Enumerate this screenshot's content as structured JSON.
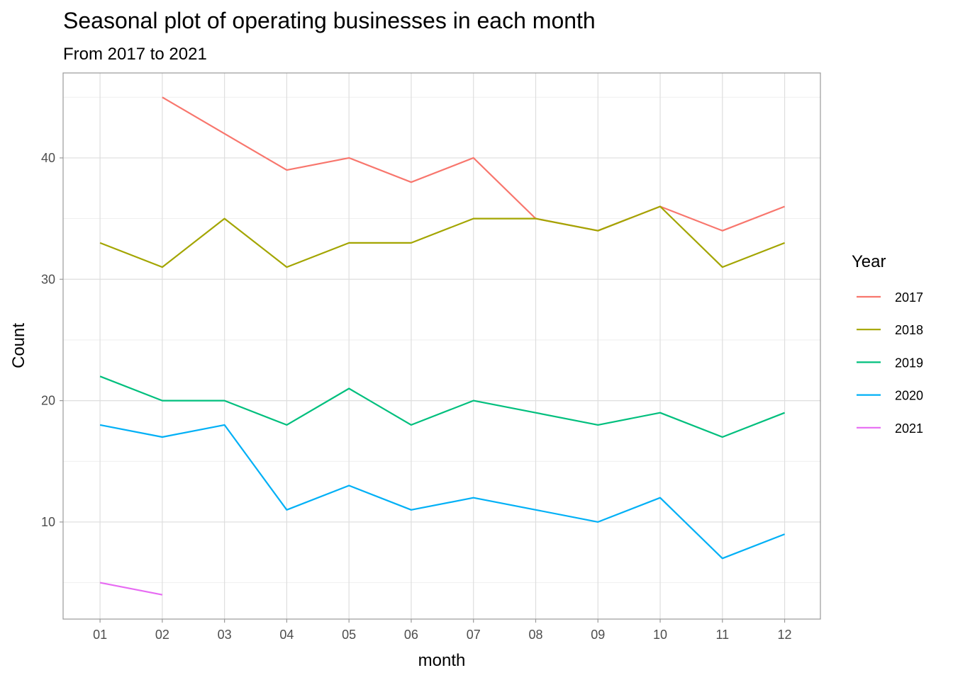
{
  "chart_data": {
    "type": "line",
    "title": "Seasonal plot of operating businesses in each month",
    "subtitle": "From 2017 to 2021",
    "xlabel": "month",
    "ylabel": "Count",
    "categories": [
      "01",
      "02",
      "03",
      "04",
      "05",
      "06",
      "07",
      "08",
      "09",
      "10",
      "11",
      "12"
    ],
    "yticks": [
      10,
      20,
      30,
      40
    ],
    "ylim": [
      2,
      47
    ],
    "grid": true,
    "legend": {
      "title": "Year",
      "position": "right"
    },
    "series": [
      {
        "name": "2017",
        "color": "#F8766D",
        "values": [
          null,
          45,
          42,
          39,
          40,
          38,
          40,
          35,
          34,
          36,
          34,
          36
        ]
      },
      {
        "name": "2018",
        "color": "#A3A500",
        "values": [
          33,
          31,
          35,
          31,
          33,
          33,
          35,
          35,
          34,
          36,
          31,
          33
        ]
      },
      {
        "name": "2019",
        "color": "#00BF7D",
        "values": [
          22,
          20,
          20,
          18,
          21,
          18,
          20,
          19,
          18,
          19,
          17,
          19
        ]
      },
      {
        "name": "2020",
        "color": "#00B0F6",
        "values": [
          18,
          17,
          18,
          11,
          13,
          11,
          12,
          11,
          10,
          12,
          7,
          9
        ]
      },
      {
        "name": "2021",
        "color": "#E76BF3",
        "values": [
          5,
          4,
          null,
          null,
          null,
          null,
          null,
          null,
          null,
          null,
          null,
          null
        ]
      }
    ]
  }
}
